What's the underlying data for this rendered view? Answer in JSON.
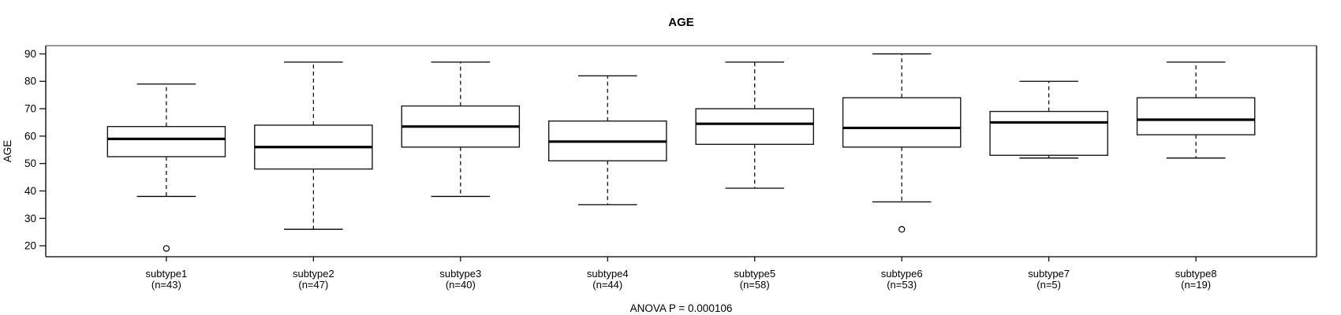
{
  "chart_data": {
    "type": "boxplot",
    "title": "AGE",
    "ylabel": "AGE",
    "footer": "ANOVA P = 0.000106",
    "ylim": [
      16,
      93
    ],
    "y_ticks": [
      20,
      30,
      40,
      50,
      60,
      70,
      80,
      90
    ],
    "grid": false,
    "legend": "none",
    "colors": {
      "background": "#ffffff",
      "data_stroke": "#000000",
      "frame_horizontal": "#8a8a8a",
      "frame_vertical": "#111111"
    },
    "groups": [
      {
        "label": "subtype1",
        "n": 43,
        "n_label": "(n=43)",
        "whisker_low": 38,
        "q1": 52.5,
        "median": 59,
        "q3": 63.5,
        "whisker_high": 79,
        "outliers": [
          19
        ]
      },
      {
        "label": "subtype2",
        "n": 47,
        "n_label": "(n=47)",
        "whisker_low": 26,
        "q1": 48,
        "median": 56,
        "q3": 64,
        "whisker_high": 87,
        "outliers": []
      },
      {
        "label": "subtype3",
        "n": 40,
        "n_label": "(n=40)",
        "whisker_low": 38,
        "q1": 56,
        "median": 63.5,
        "q3": 71,
        "whisker_high": 87,
        "outliers": []
      },
      {
        "label": "subtype4",
        "n": 44,
        "n_label": "(n=44)",
        "whisker_low": 35,
        "q1": 51,
        "median": 58,
        "q3": 65.5,
        "whisker_high": 82,
        "outliers": []
      },
      {
        "label": "subtype5",
        "n": 58,
        "n_label": "(n=58)",
        "whisker_low": 41,
        "q1": 57,
        "median": 64.5,
        "q3": 70,
        "whisker_high": 87,
        "outliers": []
      },
      {
        "label": "subtype6",
        "n": 53,
        "n_label": "(n=53)",
        "whisker_low": 36,
        "q1": 56,
        "median": 63,
        "q3": 74,
        "whisker_high": 90,
        "outliers": [
          26
        ]
      },
      {
        "label": "subtype7",
        "n": 5,
        "n_label": "(n=5)",
        "whisker_low": 52,
        "q1": 53,
        "median": 65,
        "q3": 69,
        "whisker_high": 80,
        "outliers": []
      },
      {
        "label": "subtype8",
        "n": 19,
        "n_label": "(n=19)",
        "whisker_low": 52,
        "q1": 60.5,
        "median": 66,
        "q3": 74,
        "whisker_high": 87,
        "outliers": []
      }
    ]
  }
}
